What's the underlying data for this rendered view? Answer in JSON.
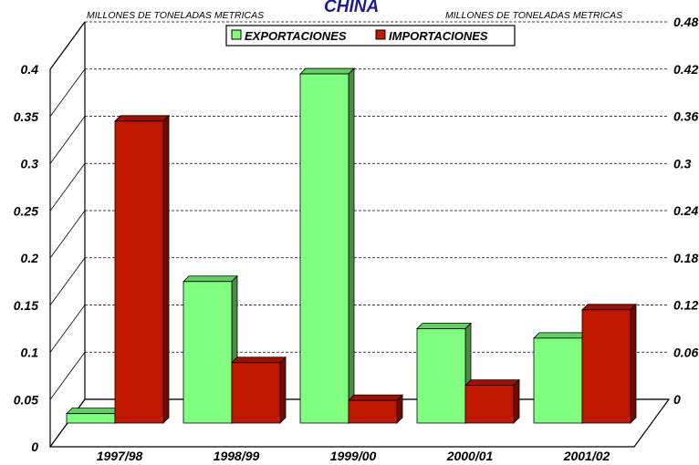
{
  "chart_data": {
    "type": "bar",
    "title": "CHINA",
    "left_axis_unit": "MILLONES DE TONELADAS METRICAS",
    "right_axis_unit": "MILLONES DE TONELADAS METRICAS",
    "categories": [
      "1997/98",
      "1998/99",
      "1999/00",
      "2000/01",
      "2001/02"
    ],
    "series": [
      {
        "name": "EXPORTACIONES",
        "axis": "left",
        "values": [
          0.01,
          0.15,
          0.37,
          0.1,
          0.09
        ],
        "color": "#80ff80"
      },
      {
        "name": "IMPORTACIONES",
        "axis": "left",
        "values": [
          0.32,
          0.064,
          0.024,
          0.04,
          0.12
        ],
        "color": "#c01800"
      }
    ],
    "left_ticks": [
      "0",
      "0.05",
      "0.1",
      "0.15",
      "0.2",
      "0.25",
      "0.3",
      "0.35",
      "0.4"
    ],
    "right_ticks": [
      "0",
      "0.06",
      "0.12",
      "0.18",
      "0.24",
      "0.3",
      "0.36",
      "0.42",
      "0.48"
    ],
    "ylim_left": [
      0,
      0.4
    ],
    "ylim_right": [
      0,
      0.48
    ],
    "grid": true,
    "legend_position": "top-center"
  }
}
